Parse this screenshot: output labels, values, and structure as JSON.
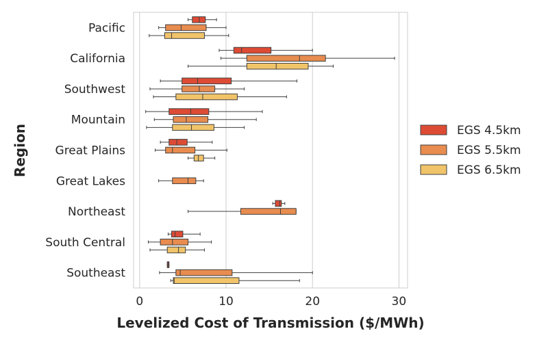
{
  "chart_data": {
    "type": "boxplot",
    "orientation": "horizontal",
    "title": "",
    "xlabel": "Levelized Cost of Transmission ($/MWh)",
    "ylabel": "Region",
    "xlim": [
      -0.7,
      31
    ],
    "xticks": [
      0,
      10,
      20,
      30
    ],
    "grid": "vertical",
    "legend_position": "right",
    "series": [
      {
        "name": "EGS 4.5km",
        "color": "#dd4b35"
      },
      {
        "name": "EGS 5.5km",
        "color": "#e88c4f"
      },
      {
        "name": "EGS 6.5km",
        "color": "#f1c46a"
      }
    ],
    "categories": [
      "Pacific",
      "California",
      "Southwest",
      "Mountain",
      "Great Plains",
      "Great Lakes",
      "Northeast",
      "South Central",
      "Southeast"
    ],
    "boxes": [
      {
        "region": "Pacific",
        "series": 0,
        "whislo": 5.6,
        "q1": 6.1,
        "med": 6.9,
        "q3": 7.6,
        "whishi": 8.9
      },
      {
        "region": "Pacific",
        "series": 1,
        "whislo": 2.2,
        "q1": 3.0,
        "med": 4.8,
        "q3": 7.7,
        "whishi": 10.0
      },
      {
        "region": "Pacific",
        "series": 2,
        "whislo": 1.1,
        "q1": 2.9,
        "med": 3.7,
        "q3": 7.5,
        "whishi": 10.3
      },
      {
        "region": "California",
        "series": 0,
        "whislo": 9.2,
        "q1": 10.9,
        "med": 11.8,
        "q3": 15.2,
        "whishi": 20.0
      },
      {
        "region": "California",
        "series": 1,
        "whislo": 9.4,
        "q1": 12.4,
        "med": 18.5,
        "q3": 21.5,
        "whishi": 29.5
      },
      {
        "region": "California",
        "series": 2,
        "whislo": 5.6,
        "q1": 12.4,
        "med": 15.8,
        "q3": 19.5,
        "whishi": 22.4
      },
      {
        "region": "Southwest",
        "series": 0,
        "whislo": 2.4,
        "q1": 4.9,
        "med": 6.7,
        "q3": 10.6,
        "whishi": 18.2
      },
      {
        "region": "Southwest",
        "series": 1,
        "whislo": 1.2,
        "q1": 4.9,
        "med": 6.9,
        "q3": 8.7,
        "whishi": 12.1
      },
      {
        "region": "Southwest",
        "series": 2,
        "whislo": 1.6,
        "q1": 4.2,
        "med": 7.3,
        "q3": 11.3,
        "whishi": 17.0
      },
      {
        "region": "Mountain",
        "series": 0,
        "whislo": 0.7,
        "q1": 3.4,
        "med": 5.9,
        "q3": 8.0,
        "whishi": 14.2
      },
      {
        "region": "Mountain",
        "series": 1,
        "whislo": 1.7,
        "q1": 3.9,
        "med": 5.4,
        "q3": 7.9,
        "whishi": 13.5
      },
      {
        "region": "Mountain",
        "series": 2,
        "whislo": 0.8,
        "q1": 3.8,
        "med": 6.0,
        "q3": 8.6,
        "whishi": 12.1
      },
      {
        "region": "Great Plains",
        "series": 0,
        "whislo": 2.4,
        "q1": 3.4,
        "med": 4.3,
        "q3": 5.5,
        "whishi": 8.4
      },
      {
        "region": "Great Plains",
        "series": 1,
        "whislo": 1.8,
        "q1": 3.0,
        "med": 3.8,
        "q3": 6.4,
        "whishi": 10.1
      },
      {
        "region": "Great Plains",
        "series": 2,
        "whislo": 5.6,
        "q1": 6.3,
        "med": 6.8,
        "q3": 7.4,
        "whishi": 8.7
      },
      {
        "region": "Great Lakes",
        "series": 1,
        "whislo": 2.2,
        "q1": 3.8,
        "med": 5.6,
        "q3": 6.5,
        "whishi": 7.4
      },
      {
        "region": "Northeast",
        "series": 0,
        "whislo": 15.4,
        "q1": 15.7,
        "med": 16.2,
        "q3": 16.4,
        "whishi": 16.8
      },
      {
        "region": "Northeast",
        "series": 1,
        "whislo": 5.6,
        "q1": 11.7,
        "med": 16.3,
        "q3": 18.1,
        "whishi": 18.1
      },
      {
        "region": "South Central",
        "series": 0,
        "whislo": 3.3,
        "q1": 3.7,
        "med": 4.1,
        "q3": 5.0,
        "whishi": 7.0
      },
      {
        "region": "South Central",
        "series": 1,
        "whislo": 1.0,
        "q1": 2.4,
        "med": 3.8,
        "q3": 5.6,
        "whishi": 8.3
      },
      {
        "region": "South Central",
        "series": 2,
        "whislo": 1.2,
        "q1": 3.2,
        "med": 4.5,
        "q3": 5.3,
        "whishi": 7.5
      },
      {
        "region": "Southeast",
        "series": 0,
        "whislo": 3.2,
        "q1": 3.2,
        "med": 3.3,
        "q3": 3.4,
        "whishi": 3.4
      },
      {
        "region": "Southeast",
        "series": 1,
        "whislo": 2.3,
        "q1": 4.2,
        "med": 4.7,
        "q3": 10.7,
        "whishi": 20.0
      },
      {
        "region": "Southeast",
        "series": 2,
        "whislo": 3.6,
        "q1": 3.9,
        "med": 4.0,
        "q3": 11.5,
        "whishi": 18.5
      }
    ]
  }
}
